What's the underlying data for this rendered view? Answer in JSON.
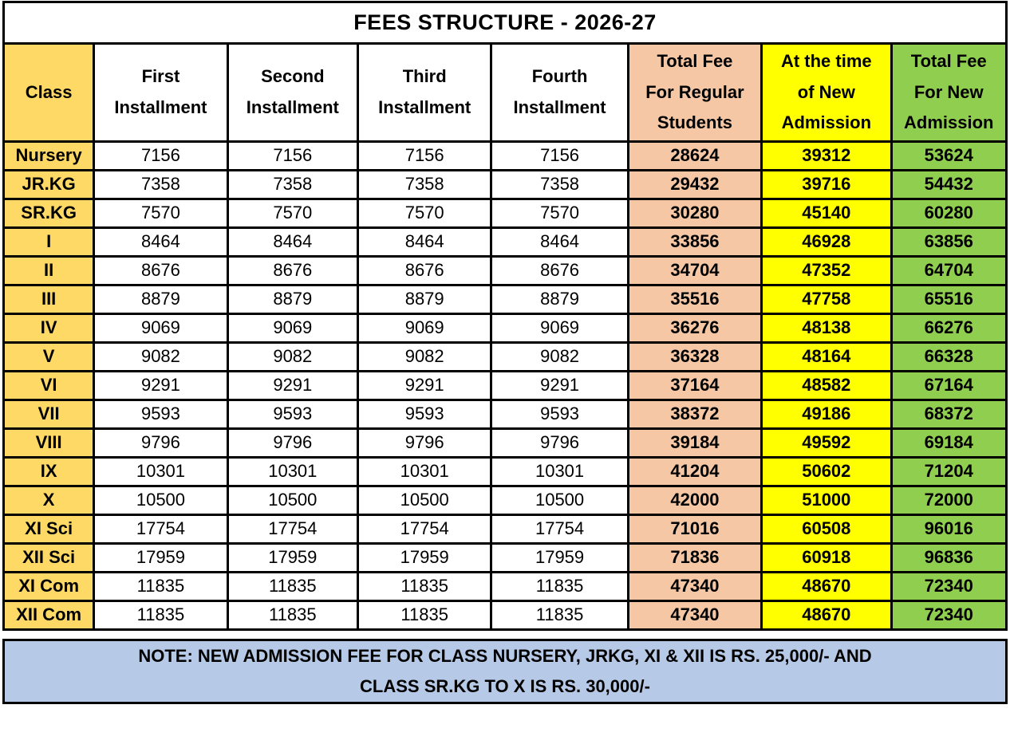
{
  "title": "FEES STRUCTURE - 2026-27",
  "columns": [
    {
      "label": "Class"
    },
    {
      "label": "First\nInstallment"
    },
    {
      "label": "Second\nInstallment"
    },
    {
      "label": "Third\nInstallment"
    },
    {
      "label": "Fourth\nInstallment"
    },
    {
      "label": "Total Fee\nFor Regular\nStudents"
    },
    {
      "label": "At the time\nof New\nAdmission"
    },
    {
      "label": "Total Fee\nFor New\nAdmission"
    }
  ],
  "rows": [
    {
      "class": "Nursery",
      "installments": [
        "7156",
        "7156",
        "7156",
        "7156"
      ],
      "regular_total": "28624",
      "admission_fee": "39312",
      "new_total": "53624"
    },
    {
      "class": "JR.KG",
      "installments": [
        "7358",
        "7358",
        "7358",
        "7358"
      ],
      "regular_total": "29432",
      "admission_fee": "39716",
      "new_total": "54432"
    },
    {
      "class": "SR.KG",
      "installments": [
        "7570",
        "7570",
        "7570",
        "7570"
      ],
      "regular_total": "30280",
      "admission_fee": "45140",
      "new_total": "60280"
    },
    {
      "class": "I",
      "installments": [
        "8464",
        "8464",
        "8464",
        "8464"
      ],
      "regular_total": "33856",
      "admission_fee": "46928",
      "new_total": "63856"
    },
    {
      "class": "II",
      "installments": [
        "8676",
        "8676",
        "8676",
        "8676"
      ],
      "regular_total": "34704",
      "admission_fee": "47352",
      "new_total": "64704"
    },
    {
      "class": "III",
      "installments": [
        "8879",
        "8879",
        "8879",
        "8879"
      ],
      "regular_total": "35516",
      "admission_fee": "47758",
      "new_total": "65516"
    },
    {
      "class": "IV",
      "installments": [
        "9069",
        "9069",
        "9069",
        "9069"
      ],
      "regular_total": "36276",
      "admission_fee": "48138",
      "new_total": "66276"
    },
    {
      "class": "V",
      "installments": [
        "9082",
        "9082",
        "9082",
        "9082"
      ],
      "regular_total": "36328",
      "admission_fee": "48164",
      "new_total": "66328"
    },
    {
      "class": "VI",
      "installments": [
        "9291",
        "9291",
        "9291",
        "9291"
      ],
      "regular_total": "37164",
      "admission_fee": "48582",
      "new_total": "67164"
    },
    {
      "class": "VII",
      "installments": [
        "9593",
        "9593",
        "9593",
        "9593"
      ],
      "regular_total": "38372",
      "admission_fee": "49186",
      "new_total": "68372"
    },
    {
      "class": "VIII",
      "installments": [
        "9796",
        "9796",
        "9796",
        "9796"
      ],
      "regular_total": "39184",
      "admission_fee": "49592",
      "new_total": "69184"
    },
    {
      "class": "IX",
      "installments": [
        "10301",
        "10301",
        "10301",
        "10301"
      ],
      "regular_total": "41204",
      "admission_fee": "50602",
      "new_total": "71204"
    },
    {
      "class": "X",
      "installments": [
        "10500",
        "10500",
        "10500",
        "10500"
      ],
      "regular_total": "42000",
      "admission_fee": "51000",
      "new_total": "72000"
    },
    {
      "class": "XI Sci",
      "installments": [
        "17754",
        "17754",
        "17754",
        "17754"
      ],
      "regular_total": "71016",
      "admission_fee": "60508",
      "new_total": "96016"
    },
    {
      "class": "XII Sci",
      "installments": [
        "17959",
        "17959",
        "17959",
        "17959"
      ],
      "regular_total": "71836",
      "admission_fee": "60918",
      "new_total": "96836"
    },
    {
      "class": "XI Com",
      "installments": [
        "11835",
        "11835",
        "11835",
        "11835"
      ],
      "regular_total": "47340",
      "admission_fee": "48670",
      "new_total": "72340"
    },
    {
      "class": "XII Com",
      "installments": [
        "11835",
        "11835",
        "11835",
        "11835"
      ],
      "regular_total": "47340",
      "admission_fee": "48670",
      "new_total": "72340"
    }
  ],
  "note": "NOTE: NEW ADMISSION FEE FOR CLASS NURSERY, JRKG, XI & XII IS RS. 25,000/- AND\nCLASS SR.KG TO X IS RS. 30,000/-",
  "colors": {
    "class_column": "#FFD966",
    "regular_total_column": "#F5C7A4",
    "admission_fee_column": "#FFFF00",
    "new_total_column": "#90CE50",
    "note_background": "#B6C9E7",
    "border": "#000000"
  }
}
